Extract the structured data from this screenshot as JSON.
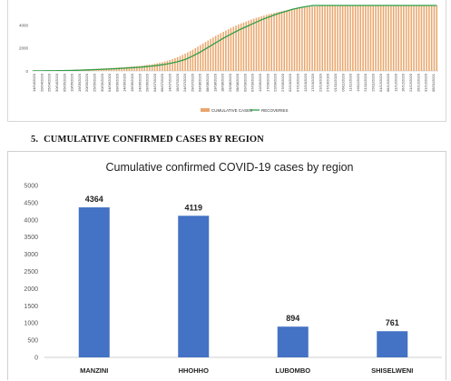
{
  "top_chart": {
    "chart_data": {
      "type": "bar",
      "y_ticks": [
        0,
        2000,
        4000
      ],
      "ylim_visible": [
        0,
        5700
      ],
      "series": [
        {
          "name": "CUMULATIVE CASES",
          "type": "bar",
          "color": "#E9A66B"
        },
        {
          "name": "RECOVERIES",
          "type": "line",
          "color": "#2E9E47"
        }
      ],
      "x_tick_labels": [
        "14/04/2020",
        "20/04/2020",
        "25/04/2020",
        "30/04/2020",
        "05/05/2020",
        "10/05/2020",
        "15/05/2020",
        "20/05/2020",
        "25/05/2020",
        "30/05/2020",
        "04/06/2020",
        "09/06/2020",
        "14/06/2020",
        "19/06/2020",
        "24/06/2020",
        "29/06/2020",
        "04/07/2020",
        "09/07/2020",
        "14/07/2020",
        "19/07/2020",
        "24/07/2020",
        "29/07/2020",
        "03/08/2020",
        "08/08/2020",
        "13/08/2020",
        "18/08/2020",
        "23/08/2020",
        "28/08/2020",
        "02/09/2020",
        "07/09/2020",
        "12/09/2020",
        "17/09/2020",
        "22/09/2020",
        "27/09/2020",
        "02/10/2020",
        "07/10/2020",
        "12/10/2020",
        "17/10/2020",
        "22/10/2020",
        "27/10/2020",
        "01/11/2020",
        "06/11/2020",
        "11/11/2020",
        "16/11/2020",
        "21/11/2020",
        "26/11/2020",
        "01/12/2020",
        "06/12/2020",
        "11/12/2020",
        "16/12/2020",
        "21/12/2020",
        "26/12/2020",
        "31/12/2020",
        "05/01/2021"
      ],
      "cases_profile": [
        22,
        30,
        40,
        55,
        70,
        90,
        120,
        150,
        180,
        210,
        250,
        290,
        330,
        380,
        440,
        520,
        620,
        760,
        950,
        1200,
        1500,
        1850,
        2250,
        2650,
        3050,
        3400,
        3750,
        4050,
        4300,
        4550,
        4750,
        4950,
        5100,
        5250,
        5380,
        5480,
        5560,
        5620,
        5680,
        5720,
        5760,
        5800,
        5830,
        5860,
        5890,
        5920,
        5950,
        5980,
        6010,
        6040,
        6070,
        6100,
        6130,
        6160
      ],
      "recoveries_profile": [
        10,
        12,
        14,
        20,
        30,
        40,
        60,
        85,
        110,
        140,
        170,
        200,
        240,
        280,
        320,
        380,
        450,
        540,
        650,
        800,
        1000,
        1300,
        1650,
        2050,
        2450,
        2850,
        3200,
        3550,
        3850,
        4150,
        4450,
        4700,
        4950,
        5150,
        5350,
        5500,
        5620,
        5720,
        5800,
        5870,
        5930,
        5980,
        6020,
        6060,
        6100,
        6130,
        6160,
        6190,
        6220,
        6250,
        6280,
        6300,
        6320,
        6340
      ]
    }
  },
  "section": {
    "number": "5.",
    "title": "CUMULATIVE CONFIRMED CASES BY REGION"
  },
  "bottom_chart": {
    "chart_data": {
      "type": "bar",
      "title": "Cumulative confirmed COVID-19 cases by region",
      "categories": [
        "MANZINI",
        "HHOHHO",
        "LUBOMBO",
        "SHISELWENI"
      ],
      "values": [
        4364,
        4119,
        894,
        761
      ],
      "ylim": [
        0,
        5000
      ],
      "y_ticks": [
        0,
        500,
        1000,
        1500,
        2000,
        2500,
        3000,
        3500,
        4000,
        4500,
        5000
      ],
      "bar_color": "#4472C4",
      "data_labels": true,
      "legend": "none",
      "grid": false
    }
  }
}
